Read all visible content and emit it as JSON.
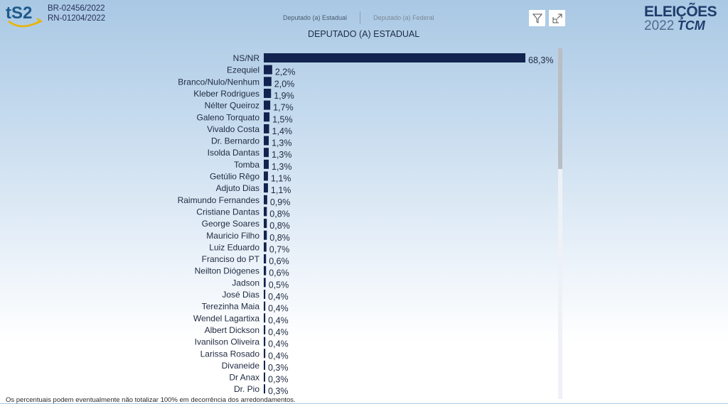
{
  "header": {
    "logo_text": "tS2",
    "codes": [
      "BR-02456/2022",
      "RN-01204/2022"
    ],
    "tabs": [
      {
        "label": "Deputado (a) Estadual"
      },
      {
        "label": "Deputado (a) Federal"
      }
    ],
    "brand_line1": "ELEIÇÕES",
    "brand_year": "2022",
    "brand_tcm": "TCM",
    "icons": [
      "filter-icon",
      "expand-icon"
    ]
  },
  "footer": {
    "note": "Os percentuais podem eventualmente não totalizar 100% em decorrência dos arredondamentos."
  },
  "chart_data": {
    "type": "bar",
    "orientation": "horizontal",
    "title": "DEPUTADO (A) ESTADUAL",
    "color": "#12234f",
    "categories": [
      "NS/NR",
      "Ezequiel",
      "Branco/Nulo/Nenhum",
      "Kleber Rodrigues",
      "Nélter Queiroz",
      "Galeno Torquato",
      "Vivaldo Costa",
      "Dr. Bernardo",
      "Isolda Dantas",
      "Tomba",
      "Getúlio Rêgo",
      "Adjuto Dias",
      "Raimundo Fernandes",
      "Cristiane Dantas",
      "George Soares",
      "Mauricio Filho",
      "Luiz Eduardo",
      "Franciso do PT",
      "Neilton Diógenes",
      "Jadson",
      "José Dias",
      "Terezinha Maia",
      "Wendel Lagartixa",
      "Albert Dickson",
      "Ivanilson Oliveira",
      "Larissa Rosado",
      "Divaneide",
      "Dr Anax",
      "Dr. Pio"
    ],
    "values": [
      68.3,
      2.2,
      2.0,
      1.9,
      1.7,
      1.5,
      1.4,
      1.3,
      1.3,
      1.3,
      1.1,
      1.1,
      0.9,
      0.8,
      0.8,
      0.8,
      0.7,
      0.6,
      0.6,
      0.5,
      0.4,
      0.4,
      0.4,
      0.4,
      0.4,
      0.4,
      0.3,
      0.3,
      0.3
    ],
    "labels": [
      "68,3%",
      "2,2%",
      "2,0%",
      "1,9%",
      "1,7%",
      "1,5%",
      "1,4%",
      "1,3%",
      "1,3%",
      "1,3%",
      "1,1%",
      "1,1%",
      "0,9%",
      "0,8%",
      "0,8%",
      "0,8%",
      "0,7%",
      "0,6%",
      "0,6%",
      "0,5%",
      "0,4%",
      "0,4%",
      "0,4%",
      "0,4%",
      "0,4%",
      "0,4%",
      "0,3%",
      "0,3%",
      "0,3%"
    ],
    "unit": "%"
  }
}
